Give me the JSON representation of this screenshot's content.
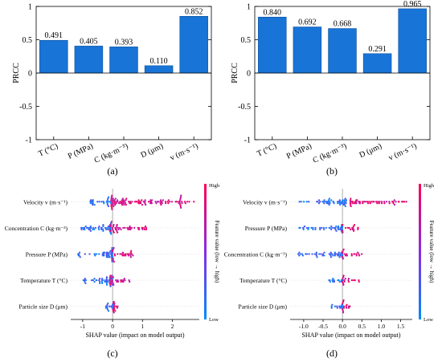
{
  "panel_labels": {
    "a": "(a)",
    "b": "(b)",
    "c": "(c)",
    "d": "(d)"
  },
  "colors": {
    "bar": "#1874d6",
    "bar_edge": "#0c4f9c",
    "high": "#ff0052",
    "low": "#008bfb"
  },
  "chart_data": [
    {
      "panel": "a",
      "type": "bar",
      "ylabel": "PRCC",
      "ylim": [
        -1,
        1
      ],
      "yticks": [
        -1,
        -0.5,
        0,
        0.5,
        1
      ],
      "ytick_labels": [
        "-1",
        "-0.5",
        "0",
        "0.5",
        "1"
      ],
      "categories": [
        "T (°C)",
        "P (MPa)",
        "C  (kg·m⁻³)",
        "D (μm)",
        "v  (m·s⁻¹)"
      ],
      "values": [
        0.491,
        0.405,
        0.393,
        0.11,
        0.852
      ],
      "value_labels": [
        "0.491",
        "0.405",
        "0.393",
        "0.110",
        "0.852"
      ],
      "grid": false
    },
    {
      "panel": "b",
      "type": "bar",
      "ylabel": "PRCC",
      "ylim": [
        -1,
        1
      ],
      "yticks": [
        -1,
        -0.5,
        0,
        0.5,
        1
      ],
      "ytick_labels": [
        "-1",
        "-0.5",
        "0",
        "0.5",
        "1"
      ],
      "categories": [
        "T (°C)",
        "P (MPa)",
        "C  (kg·m⁻³)",
        "D (μm)",
        "v  (m·s⁻¹)"
      ],
      "values": [
        0.84,
        0.692,
        0.668,
        0.291,
        0.965
      ],
      "value_labels": [
        "0.840",
        "0.692",
        "0.668",
        "0.291",
        "0.965"
      ],
      "grid": false
    },
    {
      "panel": "c",
      "type": "scatter",
      "subtype": "shap-beeswarm",
      "xlabel": "SHAP value (impact on model output)",
      "xlim": [
        -1.4,
        2.9
      ],
      "xticks": [
        -1,
        0,
        1,
        2
      ],
      "xtick_labels": [
        "-1",
        "0",
        "1",
        "2"
      ],
      "features": [
        "Velocity v (m·s⁻¹)",
        "Concentration C (kg·m⁻³)",
        "Pressure P (MPa)",
        "Temperature T (°C)",
        "Particle size D (μm)"
      ],
      "spreads": [
        {
          "low": [
            -0.75,
            -0.05
          ],
          "high": [
            -0.05,
            2.75
          ]
        },
        {
          "low": [
            -1.15,
            -0.05
          ],
          "high": [
            -0.1,
            1.15
          ]
        },
        {
          "low": [
            -1.2,
            0.0
          ],
          "high": [
            0.0,
            0.7
          ]
        },
        {
          "low": [
            -1.0,
            0.0
          ],
          "high": [
            -0.1,
            0.6
          ]
        },
        {
          "low": [
            -0.25,
            0.0
          ],
          "high": [
            0.0,
            0.2
          ]
        }
      ],
      "colorbar": {
        "label": "Feature value (low → high)",
        "high": "High",
        "low": "Low"
      }
    },
    {
      "panel": "d",
      "type": "scatter",
      "subtype": "shap-beeswarm",
      "xlabel": "SHAP value (impact on model output)",
      "xlim": [
        -1.35,
        1.8
      ],
      "xticks": [
        -1,
        -0.5,
        0,
        0.5,
        1,
        1.5
      ],
      "xtick_labels": [
        "-1.0",
        "-0.5",
        "0.0",
        "0.5",
        "1.0",
        "1.5"
      ],
      "features": [
        "Velocity v (m·s⁻¹)",
        "Pressure P (MPa)",
        "Concentration C (kg·m⁻³)",
        "Temperature T (°C)",
        "Particle size D (μm)"
      ],
      "spreads": [
        {
          "low": [
            -1.2,
            0.1
          ],
          "high": [
            0.2,
            1.65
          ]
        },
        {
          "low": [
            -1.15,
            0.0
          ],
          "high": [
            0.0,
            0.45
          ]
        },
        {
          "low": [
            -1.15,
            0.0
          ],
          "high": [
            0.0,
            0.5
          ]
        },
        {
          "low": [
            -0.35,
            0.0
          ],
          "high": [
            0.0,
            0.45
          ]
        },
        {
          "low": [
            -0.3,
            0.0
          ],
          "high": [
            0.0,
            0.2
          ]
        }
      ],
      "colorbar": {
        "label": "Feature value (low → high)",
        "high": "High",
        "low": "Low"
      }
    }
  ]
}
